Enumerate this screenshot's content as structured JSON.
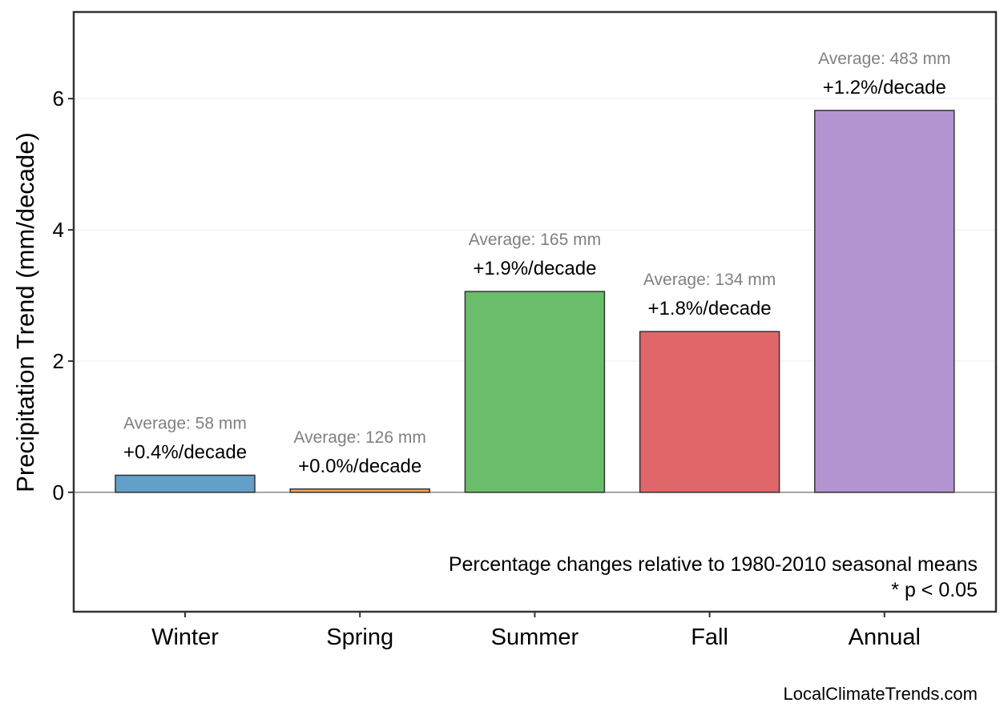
{
  "chart_data": {
    "type": "bar",
    "title": "",
    "xlabel": "",
    "ylabel": "Precipitation Trend (mm/decade)",
    "ylim": [
      -1.82,
      7.32
    ],
    "yticks": [
      0,
      2,
      4,
      6
    ],
    "grid": true,
    "categories": [
      "Winter",
      "Spring",
      "Summer",
      "Fall",
      "Annual"
    ],
    "values": [
      0.26,
      0.05,
      3.06,
      2.45,
      5.82
    ],
    "percent_labels": [
      "+0.4%/decade",
      "+0.0%/decade",
      "+1.9%/decade",
      "+1.8%/decade",
      "+1.2%/decade"
    ],
    "average_labels": [
      "Average: 58 mm",
      "Average: 126 mm",
      "Average: 165 mm",
      "Average: 134 mm",
      "Average: 483 mm"
    ],
    "colors": [
      "#62a0ca",
      "#f9a55a",
      "#6abd6a",
      "#e06769",
      "#b394d0"
    ],
    "annotation": [
      "Percentage changes relative to 1980-2010 seasonal means",
      "* p < 0.05"
    ],
    "source": "LocalClimateTrends.com"
  }
}
